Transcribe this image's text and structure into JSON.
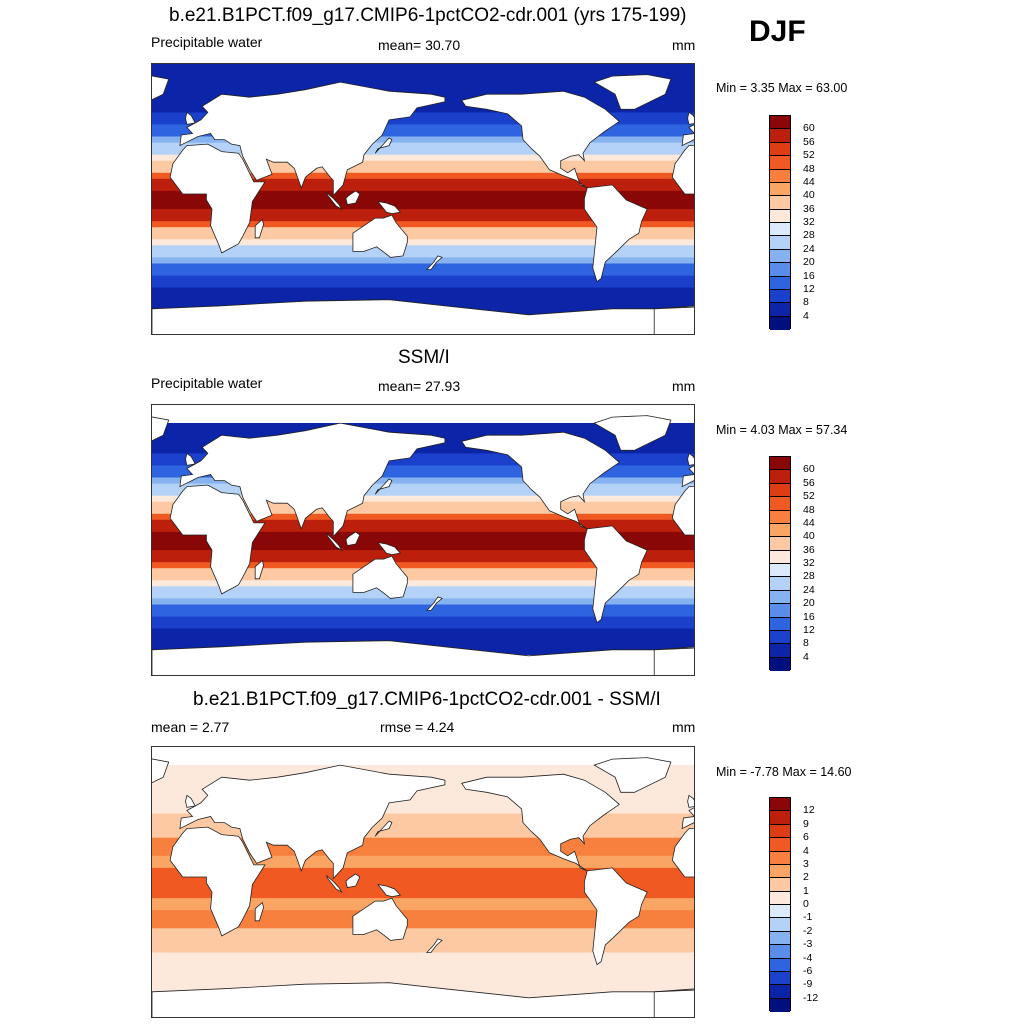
{
  "season_label": "DJF",
  "panels": [
    {
      "title": "b.e21.B1PCT.f09_g17.CMIP6-1pctCO2-cdr.001 (yrs 175-199)",
      "left_label": "Precipitable water",
      "center_label": "mean=  30.70",
      "units": "mm",
      "minmax": "Min =   3.35 Max =  63.00",
      "kind": "absolute",
      "masked": false,
      "colorbar": {
        "labels": [
          "60",
          "56",
          "52",
          "48",
          "44",
          "40",
          "36",
          "32",
          "28",
          "24",
          "20",
          "16",
          "12",
          "8",
          "4"
        ],
        "colors": [
          "#8a0707",
          "#bc1f0c",
          "#de3c15",
          "#f05a22",
          "#f7803e",
          "#fba564",
          "#fdc9a3",
          "#fde9dc",
          "#dcebfb",
          "#b4d2f7",
          "#86b2f0",
          "#5a8de9",
          "#2f64e1",
          "#1a40cc",
          "#0c24a8",
          "#000f7e"
        ]
      }
    },
    {
      "title": "SSM/I",
      "left_label": "Precipitable water",
      "center_label": "mean=  27.93",
      "units": "mm",
      "minmax": "Min =   4.03 Max =  57.34",
      "kind": "absolute",
      "masked": true,
      "colorbar": {
        "labels": [
          "60",
          "56",
          "52",
          "48",
          "44",
          "40",
          "36",
          "32",
          "28",
          "24",
          "20",
          "16",
          "12",
          "8",
          "4"
        ],
        "colors": [
          "#8a0707",
          "#bc1f0c",
          "#de3c15",
          "#f05a22",
          "#f7803e",
          "#fba564",
          "#fdc9a3",
          "#fde9dc",
          "#dcebfb",
          "#b4d2f7",
          "#86b2f0",
          "#5a8de9",
          "#2f64e1",
          "#1a40cc",
          "#0c24a8",
          "#000f7e"
        ]
      }
    },
    {
      "title": "b.e21.B1PCT.f09_g17.CMIP6-1pctCO2-cdr.001 - SSM/I",
      "left_label": "mean =   2.77",
      "center_label": "rmse =   4.24",
      "units": "mm",
      "minmax": "Min =  -7.78 Max =  14.60",
      "kind": "difference",
      "masked": true,
      "colorbar": {
        "labels": [
          "12",
          "9",
          "6",
          "4",
          "3",
          "2",
          "1",
          "0",
          "-1",
          "-2",
          "-3",
          "-4",
          "-6",
          "-9",
          "-12"
        ],
        "colors": [
          "#8a0707",
          "#bc1f0c",
          "#de3c15",
          "#f05a22",
          "#f7803e",
          "#fba564",
          "#fdc9a3",
          "#fde9dc",
          "#dcebfb",
          "#b4d2f7",
          "#86b2f0",
          "#5a8de9",
          "#2f64e1",
          "#1a40cc",
          "#0c24a8",
          "#000f7e"
        ]
      }
    }
  ]
}
